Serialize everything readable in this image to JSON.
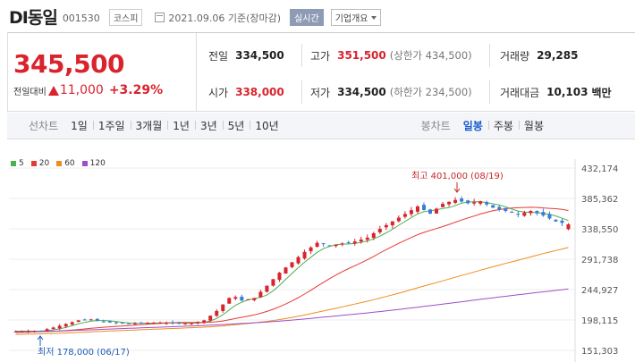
{
  "header": {
    "name": "DI동일",
    "code": "001530",
    "market": "코스피",
    "date": "2021.09.06 기준(장마감)",
    "live_label": "실시간",
    "info_select": "기업개요"
  },
  "quote": {
    "price": "345,500",
    "change_label": "전일대비",
    "change": "11,000",
    "change_rate": "+3.29%",
    "prev_close_label": "전일",
    "prev_close": "334,500",
    "high_label": "고가",
    "high": "351,500",
    "upper_limit": "(상한가 434,500)",
    "volume_label": "거래량",
    "volume": "29,285",
    "open_label": "시가",
    "open": "338,000",
    "low_label": "저가",
    "low": "334,500",
    "lower_limit": "(하한가 234,500)",
    "value_label": "거래대금",
    "value": "10,103",
    "value_unit": "백만"
  },
  "tabs": {
    "line_label": "선차트",
    "line": [
      "1일",
      "1주일",
      "3개월",
      "1년",
      "3년",
      "5년",
      "10년"
    ],
    "candle_label": "봉차트",
    "candle": [
      "일봉",
      "주봉",
      "월봉"
    ],
    "active_candle": "일봉"
  },
  "colors": {
    "up": "#d9232d",
    "down": "#3a7bd5",
    "ma5": "#4caf50",
    "ma20": "#e53935",
    "ma60": "#ef8c22",
    "ma120": "#9c4fc8"
  },
  "chart_data": {
    "type": "candlestick",
    "legend": [
      "5",
      "20",
      "60",
      "120"
    ],
    "y_ticks": [
      "432,174",
      "385,362",
      "338,550",
      "291,738",
      "244,927",
      "198,115",
      "151,303"
    ],
    "ylim": [
      151303,
      432174
    ],
    "max_annotation": "최고 401,000 (08/19)",
    "min_annotation": "최저 178,000 (06/17)"
  }
}
